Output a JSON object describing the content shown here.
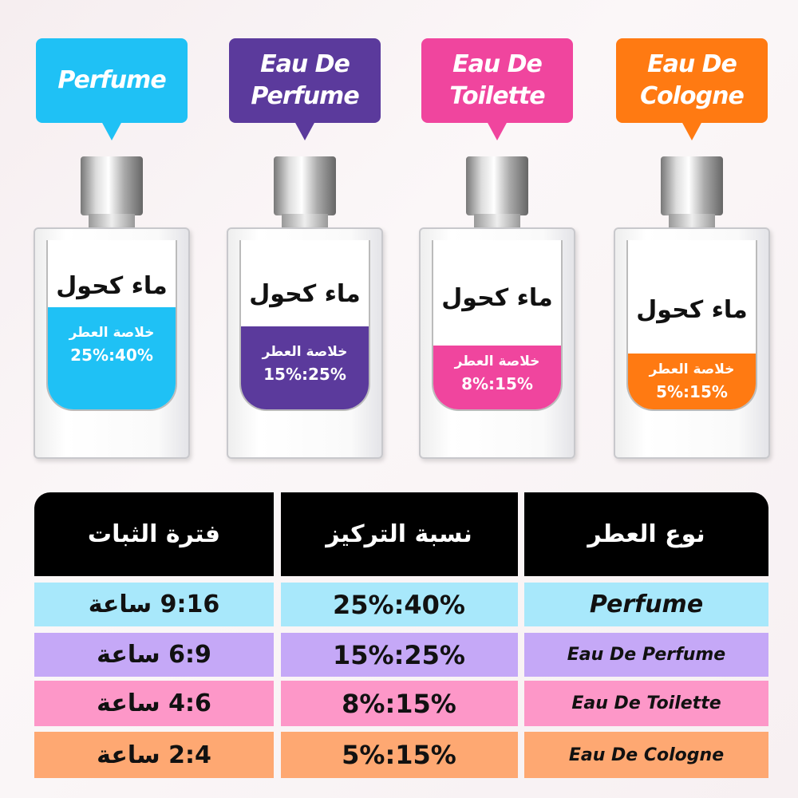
{
  "bottles": [
    {
      "name": "Perfume",
      "color": "#1fc1f5",
      "water": "ماء كحول",
      "essence": "خلاصة العطر",
      "range": "25%:40%"
    },
    {
      "name": "Eau De Perfume",
      "color": "#5b3a9c",
      "water": "ماء كحول",
      "essence": "خلاصة العطر",
      "range": "15%:25%"
    },
    {
      "name": "Eau De Toilette",
      "color": "#f0459e",
      "water": "ماء كحول",
      "essence": "خلاصة العطر",
      "range": "8%:15%"
    },
    {
      "name": "Eau De Cologne",
      "color": "#ff7a12",
      "water": "ماء كحول",
      "essence": "خلاصة العطر",
      "range": "5%:15%"
    }
  ],
  "table": {
    "headers": {
      "type": "نوع العطر",
      "concentration": "نسبة التركيز",
      "duration": "فترة الثبات"
    },
    "rows": [
      {
        "type": "Perfume",
        "concentration": "25%:40%",
        "duration": "9:16 ساعة",
        "color": "#a8e8fb"
      },
      {
        "type": "Eau De Perfume",
        "concentration": "15%:25%",
        "duration": "6:9 ساعة",
        "color": "#c5a8f7"
      },
      {
        "type": "Eau De Toilette",
        "concentration": "8%:15%",
        "duration": "4:6 ساعة",
        "color": "#fd97c8"
      },
      {
        "type": "Eau De Cologne",
        "concentration": "5%:15%",
        "duration": "2:4 ساعة",
        "color": "#fea872"
      }
    ]
  }
}
